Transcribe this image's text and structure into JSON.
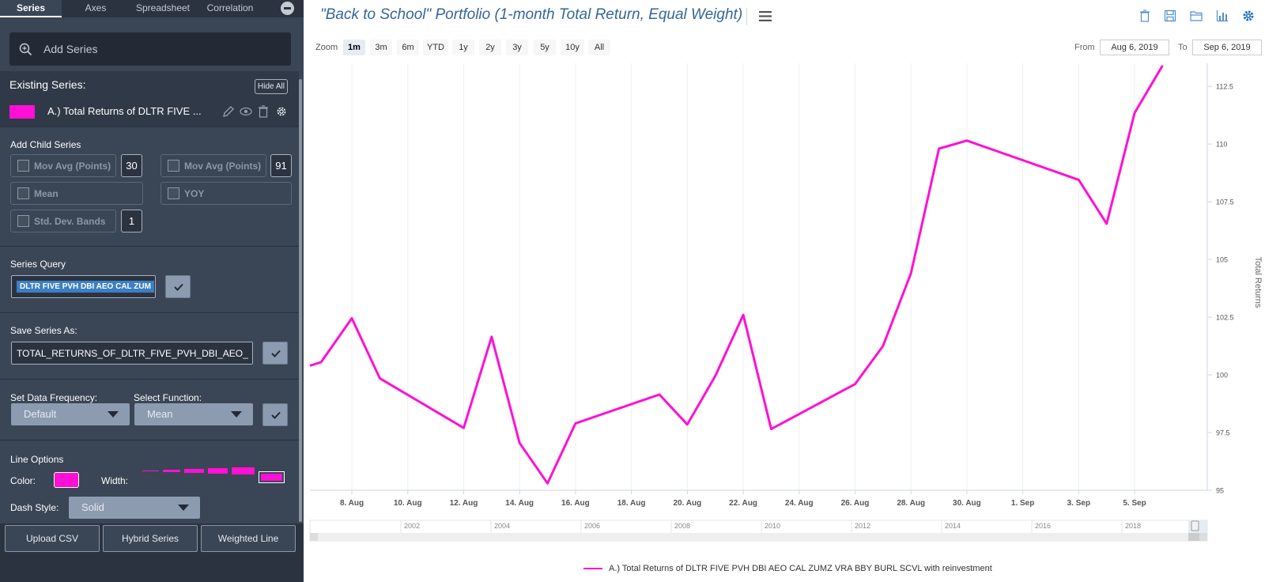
{
  "tabs": [
    "Series",
    "Axes",
    "Spreadsheet",
    "Correlation"
  ],
  "add_series": {
    "label": "Add Series"
  },
  "existing": {
    "heading": "Existing Series:",
    "hide_all": "Hide All",
    "series_name": "A.) Total Returns of DLTR FIVE ...",
    "swatch_color": "#ff10d4"
  },
  "child": {
    "heading": "Add Child Series",
    "mov_avg_1": "Mov Avg (Points)",
    "mov_avg_1_val": "30",
    "mov_avg_2": "Mov Avg (Points)",
    "mov_avg_2_val": "91",
    "mean": "Mean",
    "yoy": "YOY",
    "std_bands": "Std. Dev. Bands",
    "std_bands_val": "1"
  },
  "query": {
    "heading": "Series Query",
    "value": "DLTR FIVE PVH DBI AEO CAL ZUM"
  },
  "save": {
    "heading": "Save Series As:",
    "value": "TOTAL_RETURNS_OF_DLTR_FIVE_PVH_DBI_AEO_"
  },
  "freq": {
    "heading": "Set Data Frequency:",
    "value": "Default",
    "func_heading": "Select Function:",
    "func_value": "Mean"
  },
  "line": {
    "heading": "Line Options",
    "color_label": "Color:",
    "width_label": "Width:",
    "dash_label": "Dash Style:",
    "dash_value": "Solid",
    "color": "#ff10d4"
  },
  "buttons": {
    "csv": "Upload CSV",
    "hybrid": "Hybrid Series",
    "weighted": "Weighted Line"
  },
  "chart_header": {
    "title": "\"Back to School\" Portfolio (1-month Total Return, Equal Weight)",
    "zoom_label": "Zoom",
    "zoom_options": [
      "1m",
      "3m",
      "6m",
      "YTD",
      "1y",
      "2y",
      "3y",
      "5y",
      "10y",
      "All"
    ],
    "from_label": "From",
    "from_value": "Aug 6, 2019",
    "to_label": "To",
    "to_value": "Sep 6, 2019"
  },
  "chart_data": {
    "type": "line",
    "ylabel": "Total Returns",
    "ylim": [
      95,
      113.5
    ],
    "yticks": [
      95,
      97.5,
      100,
      102.5,
      105,
      107.5,
      110,
      112.5
    ],
    "x_tick_labels": [
      "8. Aug",
      "10. Aug",
      "12. Aug",
      "14. Aug",
      "16. Aug",
      "18. Aug",
      "20. Aug",
      "22. Aug",
      "24. Aug",
      "26. Aug",
      "28. Aug",
      "30. Aug",
      "1. Sep",
      "3. Sep",
      "5. Sep"
    ],
    "x_tick_days": [
      8,
      10,
      12,
      14,
      16,
      18,
      20,
      22,
      24,
      26,
      28,
      30,
      32,
      34,
      36
    ],
    "xlim": [
      6.5,
      38.6
    ],
    "navigator_labels": [
      "2002",
      "2004",
      "2006",
      "2008",
      "2010",
      "2012",
      "2014",
      "2016",
      "2018"
    ],
    "series": [
      {
        "name": "A.) Total Returns of DLTR FIVE PVH DBI AEO CAL ZUMZ VRA BBY BURL SCVL with reinvestment",
        "color": "#ff10d4",
        "x": [
          "Aug 6",
          "Aug 7",
          "Aug 8",
          "Aug 9",
          "Aug 12",
          "Aug 13",
          "Aug 14",
          "Aug 15",
          "Aug 16",
          "Aug 19",
          "Aug 20",
          "Aug 21",
          "Aug 22",
          "Aug 23",
          "Aug 26",
          "Aug 27",
          "Aug 28",
          "Aug 29",
          "Aug 30",
          "Sep 3",
          "Sep 4",
          "Sep 5",
          "Sep 6"
        ],
        "days": [
          6.5,
          6.9,
          8,
          9,
          12,
          13,
          14,
          15,
          16,
          19,
          20,
          21,
          22,
          23,
          26,
          27,
          28,
          29,
          30,
          34,
          35,
          36,
          37
        ],
        "values": [
          100.4,
          100.55,
          102.45,
          99.85,
          97.7,
          101.65,
          97.05,
          95.3,
          97.9,
          99.15,
          97.85,
          99.95,
          102.6,
          97.65,
          99.6,
          101.25,
          104.4,
          109.8,
          110.15,
          108.45,
          106.55,
          111.35,
          113.4
        ]
      }
    ]
  }
}
